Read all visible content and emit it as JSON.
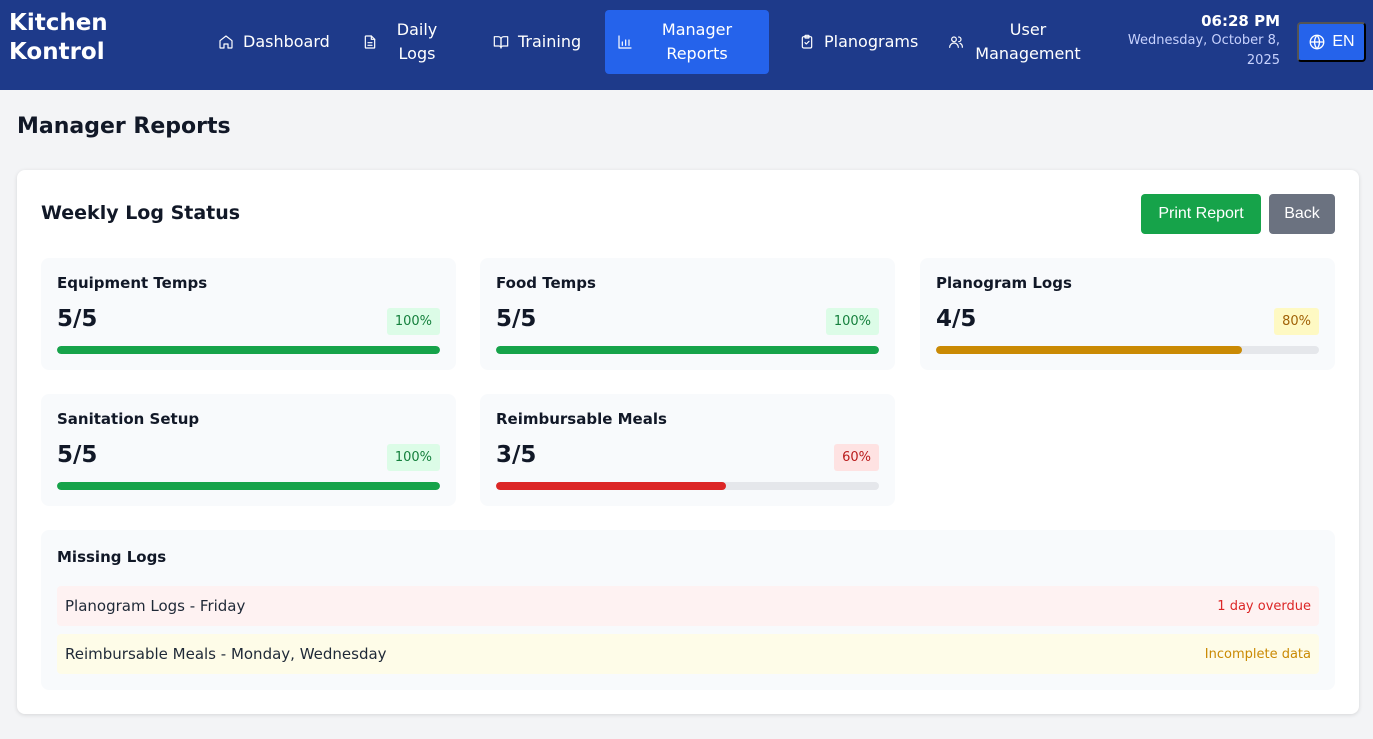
{
  "brand": "Kitchen Kontrol",
  "nav": [
    {
      "id": "dashboard",
      "label": "Dashboard",
      "icon": "home-icon",
      "active": false
    },
    {
      "id": "daily-logs",
      "label": "Daily Logs",
      "icon": "file-text-icon",
      "active": false
    },
    {
      "id": "training",
      "label": "Training",
      "icon": "book-open-icon",
      "active": false
    },
    {
      "id": "manager-reports",
      "label": "Manager Reports",
      "icon": "bar-chart-icon",
      "active": true
    },
    {
      "id": "planograms",
      "label": "Planograms",
      "icon": "clipboard-check-icon",
      "active": false
    },
    {
      "id": "user-management",
      "label": "User Management",
      "icon": "users-icon",
      "active": false
    }
  ],
  "clock": {
    "time": "06:28 PM",
    "date": "Wednesday, October 8, 2025"
  },
  "language": {
    "label": "EN",
    "icon": "globe-icon"
  },
  "page_title": "Manager Reports",
  "report": {
    "title": "Weekly Log Status",
    "print_label": "Print Report",
    "back_label": "Back",
    "stats": [
      {
        "name": "Equipment Temps",
        "count": "5/5",
        "percent_label": "100%",
        "completion": 1.0,
        "status": "ok"
      },
      {
        "name": "Food Temps",
        "count": "5/5",
        "percent_label": "100%",
        "completion": 1.0,
        "status": "ok"
      },
      {
        "name": "Planogram Logs",
        "count": "4/5",
        "percent_label": "80%",
        "completion": 0.8,
        "status": "warn"
      },
      {
        "name": "Sanitation Setup",
        "count": "5/5",
        "percent_label": "100%",
        "completion": 1.0,
        "status": "ok"
      },
      {
        "name": "Reimbursable Meals",
        "count": "3/5",
        "percent_label": "60%",
        "completion": 0.6,
        "status": "bad"
      }
    ],
    "missing": {
      "title": "Missing Logs",
      "items": [
        {
          "text": "Planogram Logs - Friday",
          "status": "1 day overdue",
          "tone": "red"
        },
        {
          "text": "Reimbursable Meals - Monday, Wednesday",
          "status": "Incomplete data",
          "tone": "yellow"
        }
      ]
    }
  },
  "colors": {
    "nav_bg": "#1e3a8a",
    "active_bg": "#2563eb",
    "success": "#16a34a",
    "warning": "#ca8a04",
    "danger": "#dc2626"
  }
}
